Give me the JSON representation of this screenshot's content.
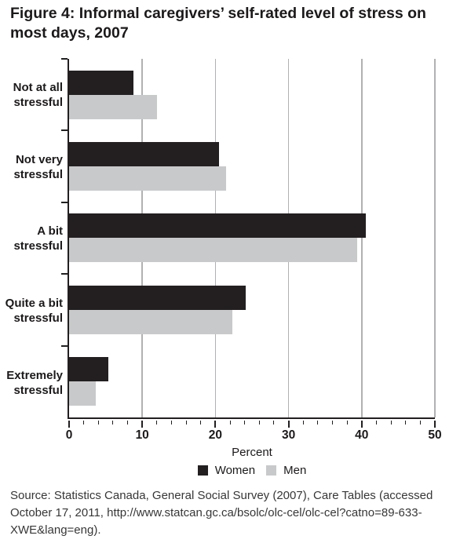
{
  "figure": {
    "title": "Figure 4: Informal caregivers’ self-rated level of stress on most days, 2007",
    "source": "Source: Statistics Canada, General Social Survey (2007), Care Tables (accessed October 17, 2011, http://www.statcan.gc.ca/bsolc/olc-cel/olc-cel?catno=89-633-XWE&lang=eng)."
  },
  "chart_data": {
    "type": "bar",
    "orientation": "horizontal",
    "title": "Figure 4: Informal caregivers’ self-rated level of stress on most days, 2007",
    "categories": [
      "Not at all stressful",
      "Not very stressful",
      "A bit stressful",
      "Quite a bit stressful",
      "Extremely stressful"
    ],
    "series": [
      {
        "name": "Women",
        "color": "#231f20",
        "values": [
          8.8,
          20.5,
          40.6,
          24.1,
          5.4
        ]
      },
      {
        "name": "Men",
        "color": "#c8c9cb",
        "values": [
          12.0,
          21.5,
          39.4,
          22.3,
          3.6
        ]
      }
    ],
    "xlabel": "Percent",
    "xlim": [
      0,
      50
    ],
    "x_major_ticks": [
      0,
      10,
      20,
      30,
      40,
      50
    ],
    "x_minor_tick_step": 2,
    "grid": "vertical-major",
    "legend_position": "bottom",
    "axis_color": "#231f20",
    "gridline_color": "#b1b1b3"
  }
}
